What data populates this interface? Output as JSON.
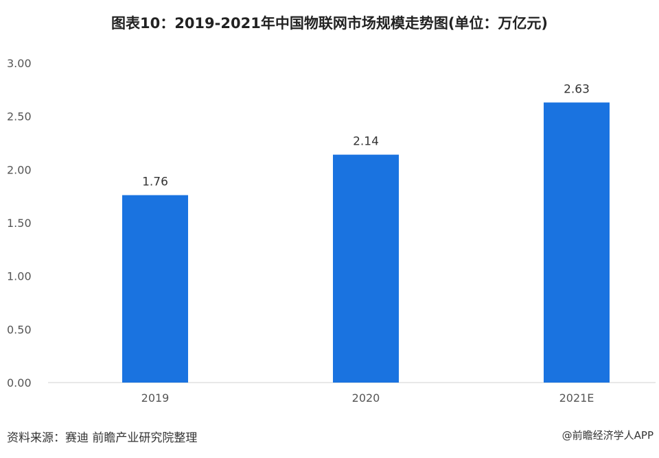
{
  "chart_data": {
    "type": "bar",
    "title": "图表10：2019-2021年中国物联网市场规模走势图(单位：万亿元)",
    "categories": [
      "2019",
      "2020",
      "2021E"
    ],
    "values": [
      1.76,
      2.14,
      2.63
    ],
    "data_labels": [
      "1.76",
      "2.14",
      "2.63"
    ],
    "xlabel": "",
    "ylabel": "",
    "ylim": [
      0,
      3
    ],
    "yticks": [
      "0.00",
      "0.50",
      "1.00",
      "1.50",
      "2.00",
      "2.50",
      "3.00"
    ],
    "grid": false,
    "bar_color": "#1a73e0"
  },
  "footer": {
    "source": "资料来源：赛迪 前瞻产业研究院整理",
    "credit": "@前瞻经济学人APP"
  }
}
